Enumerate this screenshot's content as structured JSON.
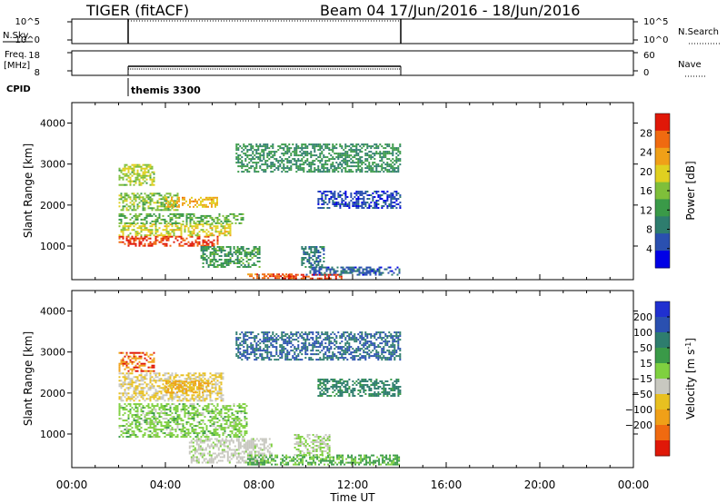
{
  "header": {
    "station": "TIGER (fitACF)",
    "beam_and_dates": "Beam 04  17/Jun/2016 - 18/Jun/2016"
  },
  "strip_panels": {
    "nsky": {
      "label": "N.Sky",
      "tick_top": "10^5",
      "tick_bottom": "10^0"
    },
    "nsearch": {
      "label": "N.Search",
      "tick_top": "10^5",
      "tick_bottom": "10^0"
    },
    "freq": {
      "label_line1": "Freq.",
      "label_line2": "[MHz]",
      "tick_top": "18",
      "tick_bottom": "8"
    },
    "nave": {
      "label": "Nave",
      "tick_top": "60",
      "tick_bottom": "0"
    },
    "cpid": {
      "label": "CPID",
      "annotation": "themis 3300"
    }
  },
  "chart_data": [
    {
      "type": "heatmap",
      "name": "power",
      "ylabel": "Slant Range [km]",
      "xlabel": "Time UT",
      "x_ticks": [
        "00:00",
        "04:00",
        "08:00",
        "12:00",
        "16:00",
        "20:00",
        "00:00"
      ],
      "y_ticks": [
        1000,
        2000,
        3000,
        4000
      ],
      "ylim": [
        180,
        4500
      ],
      "xlim_hours": [
        0,
        24
      ],
      "data_time_range_hours": [
        2.0,
        14.0
      ],
      "colorbar": {
        "label": "Power [dB]",
        "ticks": [
          4,
          8,
          12,
          16,
          20,
          24,
          28
        ],
        "range": [
          0,
          32
        ],
        "colors": [
          "#0000e6",
          "#2a50b0",
          "#2e7d6e",
          "#3a9a48",
          "#7fbf3a",
          "#e0d020",
          "#f0a018",
          "#f06a10",
          "#e01808"
        ]
      },
      "regions": [
        {
          "t0": 2.0,
          "t1": 6.2,
          "r0": 1000,
          "r1": 1250,
          "value": 29
        },
        {
          "t0": 2.0,
          "t1": 6.8,
          "r0": 1250,
          "r1": 1550,
          "value": 19
        },
        {
          "t0": 2.0,
          "t1": 7.3,
          "r0": 1550,
          "r1": 1800,
          "value": 14
        },
        {
          "t0": 2.0,
          "t1": 4.5,
          "r0": 1900,
          "r1": 2300,
          "value": 16
        },
        {
          "t0": 4.0,
          "t1": 6.2,
          "r0": 1950,
          "r1": 2200,
          "value": 22
        },
        {
          "t0": 2.0,
          "t1": 3.5,
          "r0": 2500,
          "r1": 3000,
          "value": 17
        },
        {
          "t0": 5.5,
          "t1": 8.0,
          "r0": 500,
          "r1": 1000,
          "value": 12
        },
        {
          "t0": 7.5,
          "t1": 9.5,
          "r0": 200,
          "r1": 330,
          "value": 27
        },
        {
          "t0": 9.0,
          "t1": 11.5,
          "r0": 200,
          "r1": 320,
          "value": 29
        },
        {
          "t0": 10.0,
          "t1": 14.0,
          "r0": 300,
          "r1": 500,
          "value": 6
        },
        {
          "t0": 9.8,
          "t1": 10.8,
          "r0": 500,
          "r1": 1000,
          "value": 8
        },
        {
          "t0": 10.5,
          "t1": 14.0,
          "r0": 1950,
          "r1": 2350,
          "value": 5
        },
        {
          "t0": 7.0,
          "t1": 14.0,
          "r0": 2800,
          "r1": 3500,
          "value": 11
        }
      ]
    },
    {
      "type": "heatmap",
      "name": "velocity",
      "ylabel": "Slant Range [km]",
      "xlabel": "Time UT",
      "x_ticks": [
        "00:00",
        "04:00",
        "08:00",
        "12:00",
        "16:00",
        "20:00",
        "00:00"
      ],
      "y_ticks": [
        1000,
        2000,
        3000,
        4000
      ],
      "ylim": [
        180,
        4500
      ],
      "xlim_hours": [
        0,
        24
      ],
      "data_time_range_hours": [
        2.0,
        14.0
      ],
      "colorbar": {
        "label": "Velocity [m s^-1]",
        "ticks": [
          200,
          100,
          50,
          15,
          -15,
          -50,
          -100,
          -200
        ],
        "colors": [
          "#2030d0",
          "#2a50b0",
          "#2e7d6e",
          "#3a9a48",
          "#7fd040",
          "#c8c8c0",
          "#e8c020",
          "#f0a018",
          "#f06a10",
          "#e01808"
        ]
      },
      "regions": [
        {
          "t0": 2.0,
          "t1": 7.5,
          "r0": 950,
          "r1": 1750,
          "value": 0
        },
        {
          "t0": 2.0,
          "t1": 3.5,
          "r0": 2550,
          "r1": 3000,
          "value": -200
        },
        {
          "t0": 2.0,
          "t1": 6.5,
          "r0": 1800,
          "r1": 2500,
          "value": -50
        },
        {
          "t0": 4.0,
          "t1": 6.0,
          "r0": 2000,
          "r1": 2300,
          "value": -100
        },
        {
          "t0": 5.0,
          "t1": 8.5,
          "r0": 300,
          "r1": 900,
          "value": -30
        },
        {
          "t0": 7.5,
          "t1": 14.0,
          "r0": 250,
          "r1": 500,
          "value": 20
        },
        {
          "t0": 9.5,
          "t1": 11.0,
          "r0": 500,
          "r1": 1000,
          "value": -15
        },
        {
          "t0": 10.5,
          "t1": 14.0,
          "r0": 1950,
          "r1": 2350,
          "value": 60
        },
        {
          "t0": 7.0,
          "t1": 14.0,
          "r0": 2800,
          "r1": 3500,
          "value": 100
        }
      ]
    }
  ],
  "colors": {
    "axis": "#000000",
    "background": "#ffffff"
  }
}
